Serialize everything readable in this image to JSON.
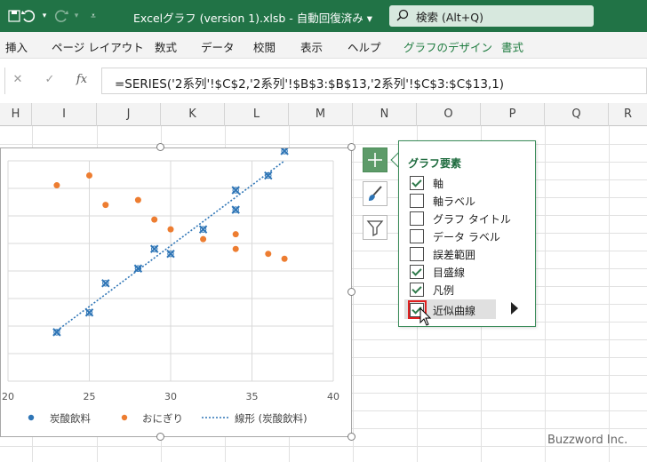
{
  "titlebar": {
    "title": "Excelグラフ (version 1).xlsb  -  自動回復済み  ▾",
    "search_placeholder": "検索 (Alt+Q)",
    "colors": {
      "bg": "#217346",
      "search_bg": "#d7e8de"
    }
  },
  "ribbon": {
    "tabs": [
      "挿入",
      "ページ レイアウト",
      "数式",
      "データ",
      "校閲",
      "表示",
      "ヘルプ",
      "グラフのデザイン",
      "書式"
    ]
  },
  "formula_bar": {
    "cancel_glyph": "✕",
    "enter_glyph": "✓",
    "fx_label": "fx",
    "formula": "=SERIES('2系列'!$C$2,'2系列'!$B$3:$B$13,'2系列'!$C$3:$C$13,1)"
  },
  "columns": [
    "H",
    "I",
    "J",
    "K",
    "L",
    "M",
    "N",
    "O",
    "P",
    "Q",
    "R"
  ],
  "chart_data": {
    "type": "scatter",
    "x_ticks": [
      "20",
      "25",
      "30",
      "35",
      "40"
    ],
    "xlim": [
      20,
      40
    ],
    "ylim": [
      0,
      45
    ],
    "grid": true,
    "legend_position": "bottom",
    "series": [
      {
        "name": "炭酸飲料",
        "color": "#2e75b6",
        "marker": "cross",
        "points": [
          [
            23,
            10
          ],
          [
            25,
            14
          ],
          [
            26,
            20
          ],
          [
            28,
            23
          ],
          [
            29,
            27
          ],
          [
            30,
            26
          ],
          [
            32,
            31
          ],
          [
            34,
            35
          ],
          [
            34,
            39
          ],
          [
            36,
            42
          ],
          [
            37,
            47
          ]
        ]
      },
      {
        "name": "おにぎり",
        "color": "#ed7d31",
        "marker": "dot",
        "points": [
          [
            23,
            40
          ],
          [
            25,
            42
          ],
          [
            26,
            36
          ],
          [
            28,
            37
          ],
          [
            29,
            33
          ],
          [
            30,
            31
          ],
          [
            32,
            29
          ],
          [
            34,
            27
          ],
          [
            34,
            30
          ],
          [
            36,
            26
          ],
          [
            37,
            25
          ]
        ]
      }
    ],
    "trendline": {
      "name": "線形 (炭酸飲料)",
      "series": 0,
      "color": "#2e75b6"
    }
  },
  "chart_buttons": {
    "plus_icon": "plus-icon",
    "brush_icon": "brush-icon",
    "filter_icon": "filter-icon"
  },
  "panel": {
    "title": "グラフ要素",
    "items": [
      {
        "label": "軸",
        "checked": true
      },
      {
        "label": "軸ラベル",
        "checked": false
      },
      {
        "label": "グラフ タイトル",
        "checked": false
      },
      {
        "label": "データ ラベル",
        "checked": false
      },
      {
        "label": "誤差範囲",
        "checked": false
      },
      {
        "label": "目盛線",
        "checked": true
      },
      {
        "label": "凡例",
        "checked": true
      },
      {
        "label": "近似曲線",
        "checked": true
      }
    ]
  },
  "watermark": "Buzzword Inc."
}
